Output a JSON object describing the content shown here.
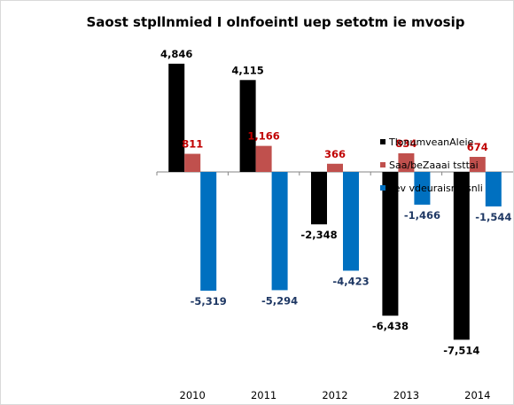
{
  "chart_data": {
    "type": "bar",
    "title": "Saost stpllnmied I olnfoeintl uep setotm ie mvosip",
    "xlabel": "",
    "ylabel": "",
    "categories": [
      "2010",
      "2011",
      "2012",
      "2013",
      "2014"
    ],
    "series": [
      {
        "name": "TlonumveanAleie",
        "color": "#000000",
        "label_color": "#000000",
        "values": [
          4846,
          4115,
          -2348,
          -6438,
          -7514
        ],
        "labels": [
          "4,846",
          "4,115",
          "-2,348",
          "-6,438",
          "-7,514"
        ]
      },
      {
        "name": "Saa/beZaaai tsttai",
        "color": "#c0504d",
        "label_color": "#c00000",
        "values": [
          811,
          1166,
          366,
          834,
          674
        ],
        "labels": [
          "811",
          "1,166",
          "366",
          "834",
          "674"
        ]
      },
      {
        "name": "sev vdeuraisrsfisnli",
        "color": "#0070c0",
        "label_color": "#1f3864",
        "values": [
          -5319,
          -5294,
          -4423,
          -1466,
          -1544
        ],
        "labels": [
          "-5,319",
          "-5,294",
          "-4,423",
          "-1,466",
          "-1,544"
        ]
      }
    ],
    "ylim": [
      -8000,
      6000
    ],
    "grid": false,
    "legend_position": "right"
  }
}
